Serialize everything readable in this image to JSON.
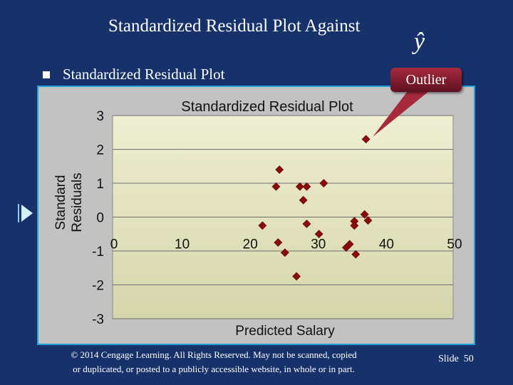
{
  "slide": {
    "title": "Standardized Residual Plot Against",
    "title_symbol": "ŷ",
    "bullet": "Standardized Residual Plot",
    "callout": "Outlier",
    "copyright_line1": "© 2014  Cengage Learning.  All Rights Reserved.  May not be scanned, copied",
    "copyright_line2": "or duplicated, or posted to a publicly accessible website, in whole or in part.",
    "slide_label": "Slide",
    "slide_number": "50"
  },
  "colors": {
    "background": "#17316b",
    "plot_area": "#e8e8c4",
    "marker": "#8b0b0b",
    "callout": "#a62a3c",
    "panel_border": "#22a1d8"
  },
  "chart_data": {
    "type": "scatter",
    "title": "Standardized Residual Plot",
    "xlabel": "Predicted Salary",
    "ylabel_lines": [
      "Standard",
      "Residuals"
    ],
    "xlim": [
      0,
      50
    ],
    "ylim": [
      -3,
      3
    ],
    "x_ticks": [
      "0",
      "10",
      "20",
      "30",
      "40",
      "50"
    ],
    "y_ticks": [
      "3",
      "2",
      "1",
      "0",
      "-1",
      "-2",
      "-3"
    ],
    "grid": "horizontal",
    "marker": "diamond",
    "points": [
      {
        "x": 22.0,
        "y": -0.25
      },
      {
        "x": 24.0,
        "y": 0.9
      },
      {
        "x": 24.5,
        "y": 1.4
      },
      {
        "x": 24.3,
        "y": -0.75
      },
      {
        "x": 25.3,
        "y": -1.05
      },
      {
        "x": 27.0,
        "y": -1.75
      },
      {
        "x": 27.5,
        "y": 0.9
      },
      {
        "x": 28.0,
        "y": 0.5
      },
      {
        "x": 28.5,
        "y": 0.9
      },
      {
        "x": 28.5,
        "y": -0.2
      },
      {
        "x": 30.3,
        "y": -0.5
      },
      {
        "x": 31.0,
        "y": 1.0
      },
      {
        "x": 34.3,
        "y": -0.9
      },
      {
        "x": 34.8,
        "y": -0.8
      },
      {
        "x": 35.5,
        "y": -0.12
      },
      {
        "x": 35.5,
        "y": -0.25
      },
      {
        "x": 35.7,
        "y": -1.1
      },
      {
        "x": 37.0,
        "y": 0.08
      },
      {
        "x": 37.2,
        "y": 2.3
      },
      {
        "x": 37.5,
        "y": -0.1
      }
    ]
  }
}
